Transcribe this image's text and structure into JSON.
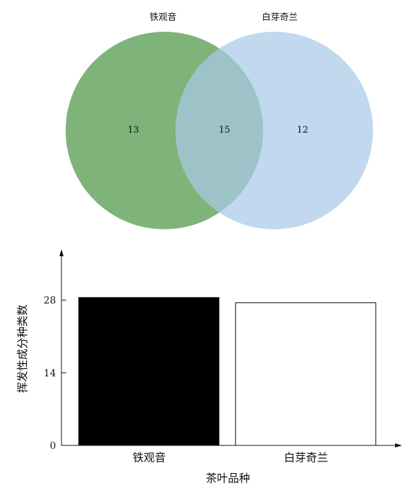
{
  "chart_data": [
    {
      "type": "venn",
      "sets": [
        {
          "name": "铁观音",
          "color": "#7eb47a",
          "only_count": "13"
        },
        {
          "name": "白芽奇兰",
          "color": "#a9c9e8",
          "only_count": "12"
        }
      ],
      "intersection": {
        "count": "15",
        "color": "#6aa7a9"
      }
    },
    {
      "type": "bar",
      "categories": [
        "铁观音",
        "白芽奇兰"
      ],
      "values": [
        28.5,
        27.5
      ],
      "bar_fills": [
        "#000000",
        "#ffffff"
      ],
      "ylabel": "挥发性成分种类数",
      "xlabel": "茶叶品种",
      "yticks": [
        "0",
        "14",
        "28"
      ],
      "ylim": [
        0,
        37
      ]
    }
  ]
}
